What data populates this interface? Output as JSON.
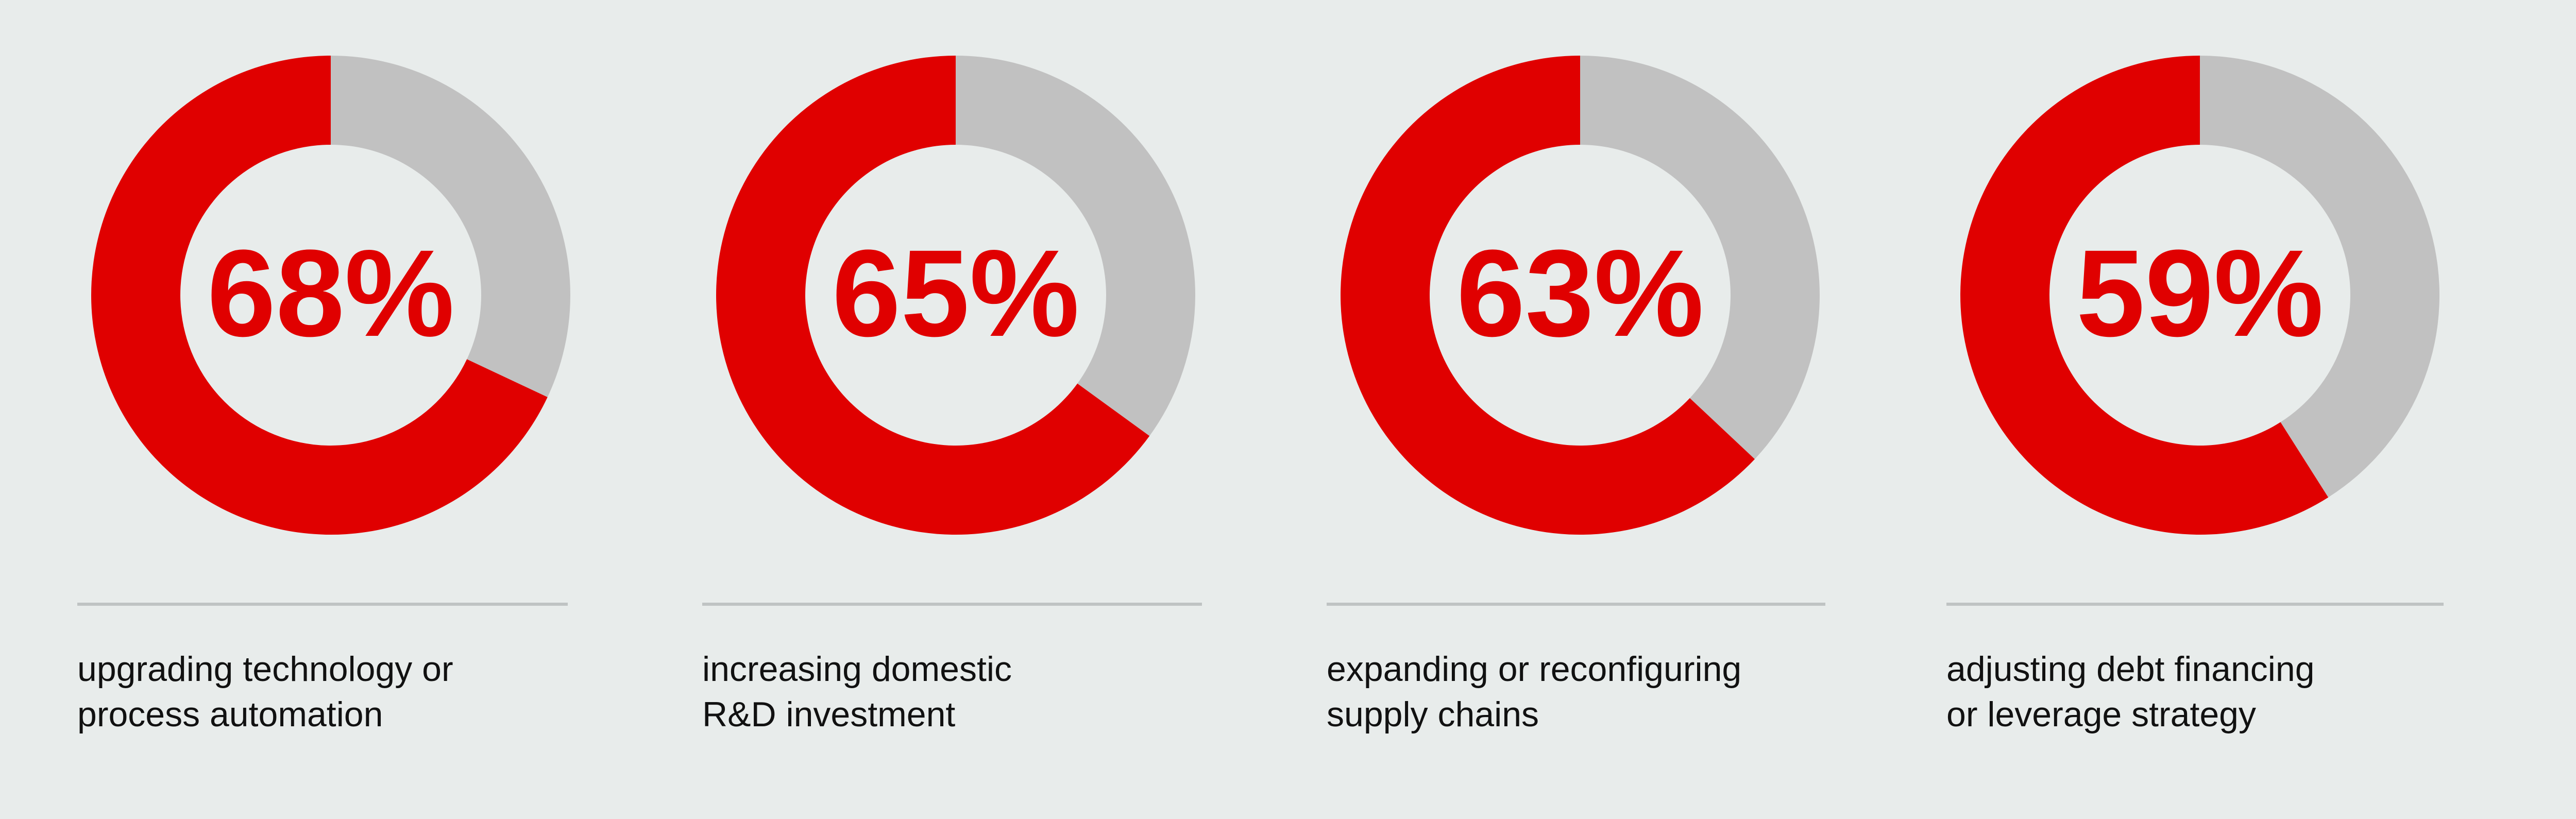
{
  "colors": {
    "background": "#e8eceb",
    "filled": "#e00000",
    "remainder": "#c1c1c1",
    "rule": "#bfc3c3"
  },
  "chart_data": [
    {
      "type": "pie",
      "value": 68,
      "label_text": "68%",
      "label_lines": [
        "upgrading technology or",
        "process automation"
      ]
    },
    {
      "type": "pie",
      "value": 65,
      "label_text": "65%",
      "label_lines": [
        "increasing domestic",
        "R&D investment"
      ]
    },
    {
      "type": "pie",
      "value": 63,
      "label_text": "63%",
      "label_lines": [
        "expanding or reconfiguring",
        "supply chains"
      ]
    },
    {
      "type": "pie",
      "value": 59,
      "label_text": "59%",
      "label_lines": [
        "adjusting debt financing",
        "or leverage strategy"
      ]
    }
  ]
}
